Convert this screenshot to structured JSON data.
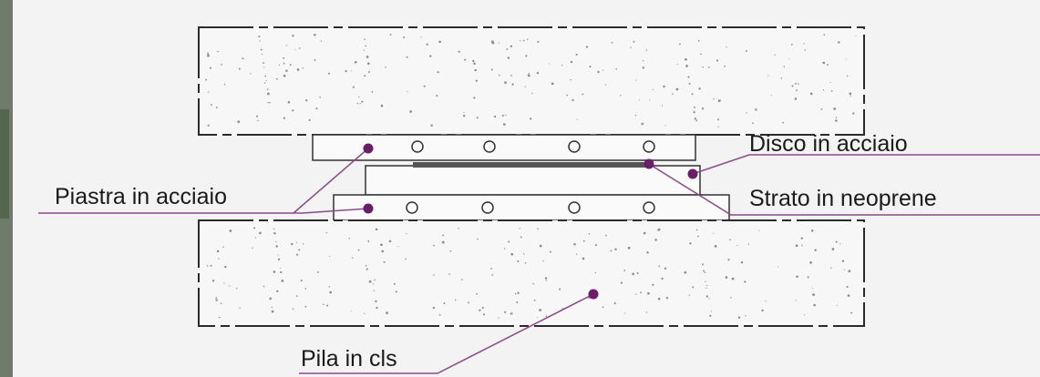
{
  "labels": {
    "disco": "Disco in acciaio",
    "piastra": "Piastra in acciaio",
    "strato": "Strato in neoprene",
    "pila": "Pila in cls"
  },
  "colors": {
    "background": "#f3f3f3",
    "concrete": "#f7f7f7",
    "outline": "#2b2b2b",
    "leader": "#8a4a8a",
    "marker": "#6a1e6a",
    "disc": "#555555"
  }
}
